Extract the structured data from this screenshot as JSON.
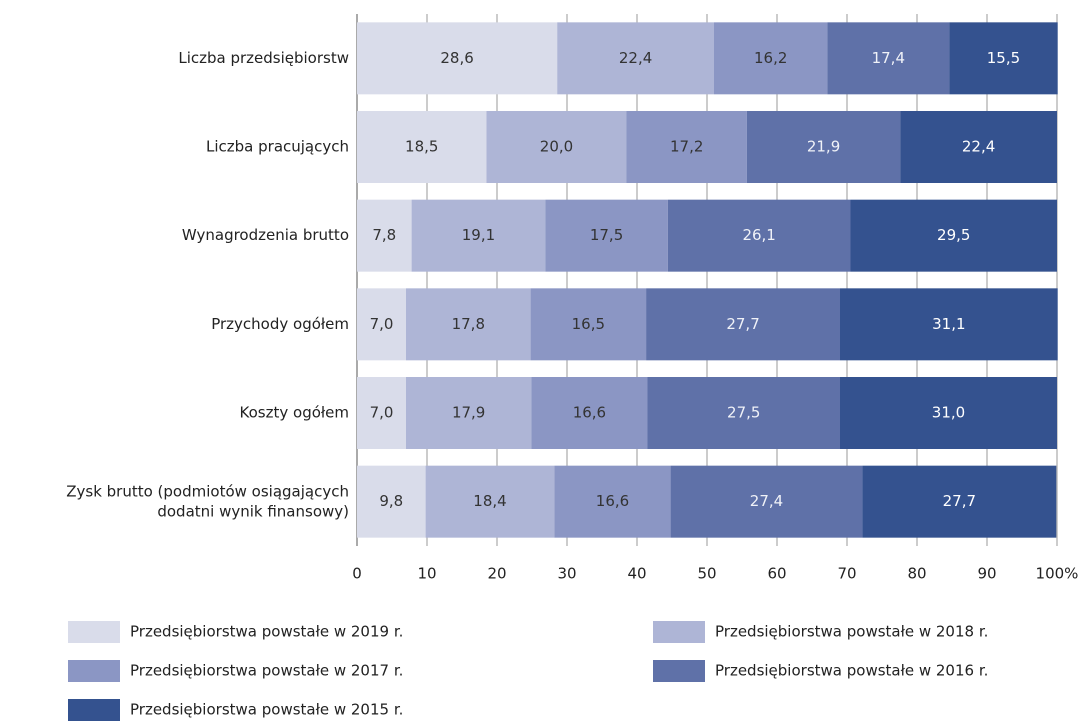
{
  "chart_data": {
    "type": "stacked_barh",
    "categories": [
      "Liczba przedsiębiorstw",
      "Liczba pracujących",
      "Wynagrodzenia brutto",
      "Przychody ogółem",
      "Koszty ogółem",
      "Zysk brutto (podmiotów osiągających dodatni wynik finansowy)"
    ],
    "series": [
      {
        "name": "Przedsiębiorstwa powstałe w 2019 r.",
        "color": "#d9dcea",
        "label_color": "#333333",
        "values": [
          28.6,
          18.5,
          7.8,
          7.0,
          7.0,
          9.8
        ],
        "value_labels": [
          "28,6",
          "18,5",
          "7,8",
          "7,0",
          "7,0",
          "9,8"
        ]
      },
      {
        "name": "Przedsiębiorstwa powstałe w 2018 r.",
        "color": "#aeb5d6",
        "label_color": "#333333",
        "values": [
          22.4,
          20.0,
          19.1,
          17.8,
          17.9,
          18.4
        ],
        "value_labels": [
          "22,4",
          "20,0",
          "19,1",
          "17,8",
          "17,9",
          "18,4"
        ]
      },
      {
        "name": "Przedsiębiorstwa powstałe w 2017 r.",
        "color": "#8b96c4",
        "label_color": "#333333",
        "values": [
          16.2,
          17.2,
          17.5,
          16.5,
          16.6,
          16.6
        ],
        "value_labels": [
          "16,2",
          "17,2",
          "17,5",
          "16,5",
          "16,6",
          "16,6"
        ]
      },
      {
        "name": "Przedsiębiorstwa powstałe w 2016 r.",
        "color": "#5f71a8",
        "label_color": "#f0f2f8",
        "values": [
          17.4,
          21.9,
          26.1,
          27.7,
          27.5,
          27.4
        ],
        "value_labels": [
          "17,4",
          "21,9",
          "26,1",
          "27,7",
          "27,5",
          "27,4"
        ]
      },
      {
        "name": "Przedsiębiorstwa powstałe w 2015 r.",
        "color": "#34528f",
        "label_color": "#ffffff",
        "values": [
          15.5,
          22.4,
          29.5,
          31.1,
          31.0,
          27.7
        ],
        "value_labels": [
          "15,5",
          "22,4",
          "29,5",
          "31,1",
          "31,0",
          "27,7"
        ]
      }
    ],
    "xlim": [
      0,
      100
    ],
    "xticks": [
      0,
      10,
      20,
      30,
      40,
      50,
      60,
      70,
      80,
      90,
      {
        "value": 100,
        "label": "100%"
      }
    ],
    "grid": true
  }
}
